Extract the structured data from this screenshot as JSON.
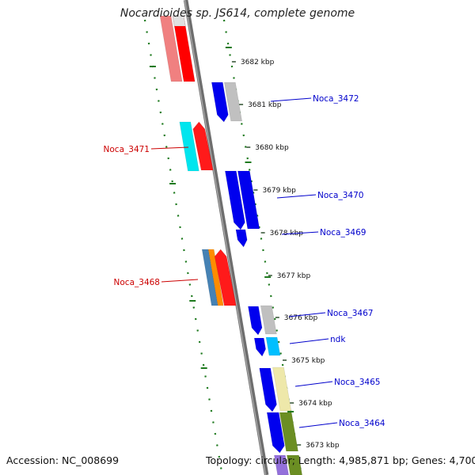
{
  "title": "Nocardioides sp. JS614, complete genome",
  "footer": {
    "accession": "Accession: NC_008699",
    "summary": "Topology: circular; Length: 4,985,871 bp; Genes: 4,700"
  },
  "colors": {
    "backbone": "#808080",
    "ticks": "#1e7a1e",
    "label_right": "#0000cc",
    "label_left": "#cc0000"
  },
  "ruler_ticks_kbp": [
    "3682 kbp",
    "3681 kbp",
    "3680 kbp",
    "3679 kbp",
    "3678 kbp",
    "3677 kbp",
    "3676 kbp",
    "3675 kbp",
    "3674 kbp",
    "3673 kbp"
  ],
  "gene_labels": {
    "right": [
      "Noca_3472",
      "Noca_3470",
      "Noca_3469",
      "Noca_3467",
      "ndk",
      "Noca_3465",
      "Noca_3464"
    ],
    "left": [
      "Noca_3471",
      "Noca_3468"
    ]
  }
}
